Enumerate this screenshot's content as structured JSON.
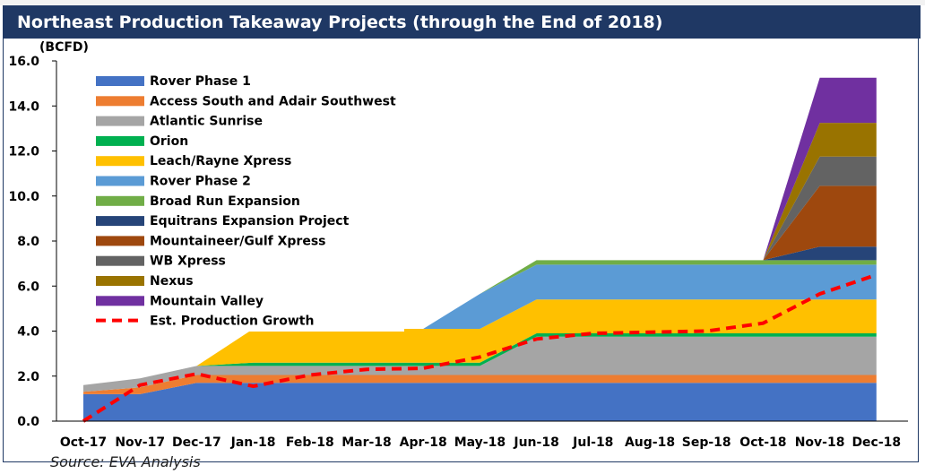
{
  "title": "Northeast Production Takeaway Projects (through the End of 2018)",
  "source": "Source: EVA Analysis",
  "chart_data": {
    "type": "area",
    "title": "Northeast Production Takeaway Projects (through the End of 2018)",
    "ylabel": "(BCFD)",
    "xlabel": "",
    "ylim": [
      0,
      16
    ],
    "yticks": [
      "0.0",
      "2.0",
      "4.0",
      "6.0",
      "8.0",
      "10.0",
      "12.0",
      "14.0",
      "16.0"
    ],
    "categories": [
      "Oct-17",
      "Nov-17",
      "Dec-17",
      "Jan-18",
      "Feb-18",
      "Mar-18",
      "Apr-18",
      "May-18",
      "Jun-18",
      "Jul-18",
      "Aug-18",
      "Sep-18",
      "Oct-18",
      "Nov-18",
      "Dec-18"
    ],
    "stacked": true,
    "legend_position": "top-left",
    "series": [
      {
        "name": "Rover Phase 1",
        "color": "#4472c4",
        "values": [
          1.2,
          1.2,
          1.7,
          1.7,
          1.7,
          1.7,
          1.7,
          1.7,
          1.7,
          1.7,
          1.7,
          1.7,
          1.7,
          1.7,
          1.7
        ]
      },
      {
        "name": "Access South and Adair Southwest",
        "color": "#ed7d31",
        "values": [
          0.1,
          0.3,
          0.35,
          0.35,
          0.35,
          0.35,
          0.35,
          0.35,
          0.35,
          0.35,
          0.35,
          0.35,
          0.35,
          0.35,
          0.35
        ]
      },
      {
        "name": "Atlantic Sunrise",
        "color": "#a5a5a5",
        "values": [
          0.3,
          0.4,
          0.4,
          0.4,
          0.4,
          0.4,
          0.4,
          0.4,
          1.7,
          1.7,
          1.7,
          1.7,
          1.7,
          1.7,
          1.7
        ]
      },
      {
        "name": "Orion",
        "color": "#00b050",
        "values": [
          0,
          0,
          0,
          0.15,
          0.15,
          0.15,
          0.15,
          0.15,
          0.15,
          0.15,
          0.15,
          0.15,
          0.15,
          0.15,
          0.15
        ]
      },
      {
        "name": "Leach/Rayne Xpress",
        "color": "#ffc000",
        "values": [
          0,
          0,
          0,
          1.5,
          1.5,
          1.5,
          1.5,
          1.5,
          1.5,
          1.5,
          1.5,
          1.5,
          1.5,
          1.5,
          1.5
        ]
      },
      {
        "name": "Rover Phase 2",
        "color": "#5b9bd5",
        "values": [
          0,
          0,
          0,
          0,
          0,
          0,
          0,
          1.55,
          1.55,
          1.55,
          1.55,
          1.55,
          1.55,
          1.55,
          1.55
        ]
      },
      {
        "name": "Broad Run Expansion",
        "color": "#70ad47",
        "values": [
          0,
          0,
          0,
          0,
          0,
          0,
          0,
          0,
          0.2,
          0.2,
          0.2,
          0.2,
          0.2,
          0.2,
          0.2
        ]
      },
      {
        "name": "Equitrans Expansion Project",
        "color": "#264478",
        "values": [
          0,
          0,
          0,
          0,
          0,
          0,
          0,
          0,
          0,
          0,
          0,
          0,
          0,
          0.6,
          0.6
        ]
      },
      {
        "name": "Mountaineer/Gulf Xpress",
        "color": "#9e480e",
        "values": [
          0,
          0,
          0,
          0,
          0,
          0,
          0,
          0,
          0,
          0,
          0,
          0,
          0,
          2.7,
          2.7
        ]
      },
      {
        "name": "WB Xpress",
        "color": "#636363",
        "values": [
          0,
          0,
          0,
          0,
          0,
          0,
          0,
          0,
          0,
          0,
          0,
          0,
          0,
          1.3,
          1.3
        ]
      },
      {
        "name": "Nexus",
        "color": "#997300",
        "values": [
          0,
          0,
          0,
          0,
          0,
          0,
          0,
          0,
          0,
          0,
          0,
          0,
          0,
          1.5,
          1.5
        ]
      },
      {
        "name": "Mountain Valley",
        "color": "#7030a0",
        "values": [
          0,
          0,
          0,
          0,
          0,
          0,
          0,
          0,
          0,
          0,
          0,
          0,
          0,
          2.0,
          2.0
        ]
      }
    ],
    "line_series": {
      "name": "Est. Production Growth",
      "color": "#ff0000",
      "style": "dashed",
      "values": [
        0.0,
        1.6,
        2.1,
        1.55,
        2.05,
        2.3,
        2.35,
        2.85,
        3.65,
        3.9,
        3.95,
        4.0,
        4.35,
        5.65,
        6.5
      ]
    }
  }
}
